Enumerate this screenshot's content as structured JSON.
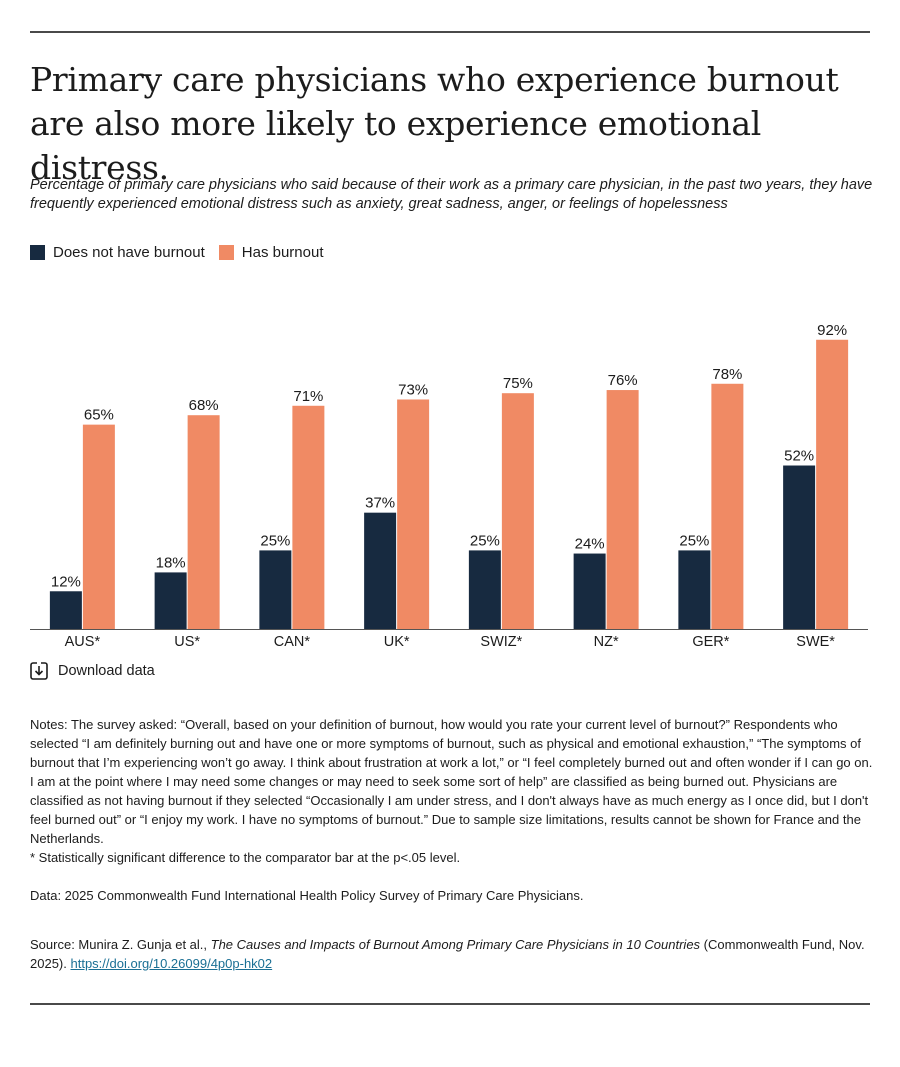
{
  "title": "Primary care physicians who experience burnout are also more likely to experience emotional distress.",
  "subtitle": "Percentage of primary care physicians who said because of their work as a primary care physician, in the past two years, they have frequently experienced emotional distress such as anxiety, great sadness, anger, or feelings of hopelessness",
  "colors": {
    "no_burnout": "#172a40",
    "burnout": "#f08a64",
    "axis": "#555555",
    "link": "#1a6f94"
  },
  "download_label": "Download data",
  "download_icon": "download-icon",
  "notes": {
    "text": "Notes: The survey asked: “Overall, based on your definition of burnout, how would you rate your current level of burnout?” Respondents who selected “I am definitely burning out and have one or more symptoms of burnout, such as physical and emotional exhaustion,” “The symptoms of burnout that I’m experiencing won’t go away. I think about frustration at work a lot,” or “I feel completely burned out and often wonder if I can go on. I am at the point where I may need some changes or may need to seek some sort of help” are classified as being burned out. Physicians are classified as not having burnout if they selected “Occasionally I am under stress, and I don't always have as much energy as I once did, but I don't feel burned out” or “I enjoy my work. I have no symptoms of burnout.” Due to sample size limitations, results cannot be shown for France and the Netherlands.",
    "footnote": "* Statistically significant difference to the comparator bar at the p<.05 level."
  },
  "data_line": "Data: 2025 Commonwealth Fund International Health Policy Survey of Primary Care Physicians.",
  "source": {
    "prefix": "Source: Munira Z. Gunja et al., ",
    "title": "The Causes and Impacts of Burnout Among Primary Care Physicians in 10 Countries",
    "suffix": " (Commonwealth Fund, Nov. 2025). ",
    "link": "https://doi.org/10.26099/4p0p-hk02"
  },
  "chart_data": {
    "type": "bar",
    "title": "Primary care physicians who experience burnout are also more likely to experience emotional distress.",
    "categories": [
      "AUS*",
      "US*",
      "CAN*",
      "UK*",
      "SWIZ*",
      "NZ*",
      "GER*",
      "SWE*"
    ],
    "series": [
      {
        "name": "Does not have burnout",
        "values": [
          12,
          18,
          25,
          37,
          25,
          24,
          25,
          52
        ],
        "labels": [
          "12%",
          "18%",
          "25%",
          "37%",
          "25%",
          "24%",
          "25%",
          "52%"
        ]
      },
      {
        "name": "Has burnout",
        "values": [
          65,
          68,
          71,
          73,
          75,
          76,
          78,
          92
        ],
        "labels": [
          "65%",
          "68%",
          "71%",
          "73%",
          "75%",
          "76%",
          "78%",
          "92%"
        ]
      }
    ],
    "ylim": [
      0,
      100
    ],
    "grid": false,
    "legend": "top-left"
  }
}
